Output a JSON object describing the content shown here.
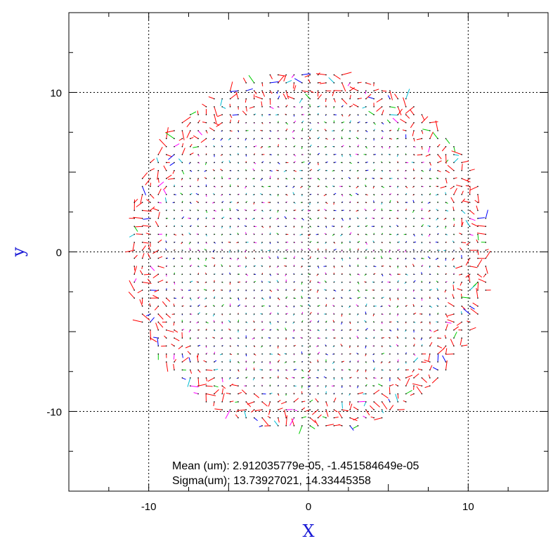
{
  "chart_data": {
    "type": "quiver",
    "xlabel": "X",
    "ylabel": "y",
    "xlim": [
      -15,
      15
    ],
    "ylim": [
      -15,
      15
    ],
    "x_ticks": [
      {
        "value": -10,
        "label": "-10"
      },
      {
        "value": 0,
        "label": "0"
      },
      {
        "value": 10,
        "label": "10"
      }
    ],
    "y_ticks": [
      {
        "value": 10,
        "label": "10"
      },
      {
        "value": 0,
        "label": "0"
      },
      {
        "value": -10,
        "label": "-10"
      }
    ],
    "grid": true,
    "grid_lines": [
      -10,
      0,
      10
    ],
    "field": {
      "shape": "disk",
      "radius": 11.4,
      "spacing": 0.5,
      "center": [
        0,
        0
      ]
    },
    "annotations": {
      "mean": "Mean (um): 2.912035779e-05, -1.451584649e-05",
      "sigma": "Sigma(um): 13.73927021, 14.33445358"
    },
    "colors": {
      "frame": "#000000",
      "grid": "#000000",
      "vectors": [
        "#ff0000",
        "#00cc00",
        "#0000ff",
        "#ff00ff",
        "#00bcd4"
      ],
      "axis_title": "#1a1ad6"
    }
  }
}
